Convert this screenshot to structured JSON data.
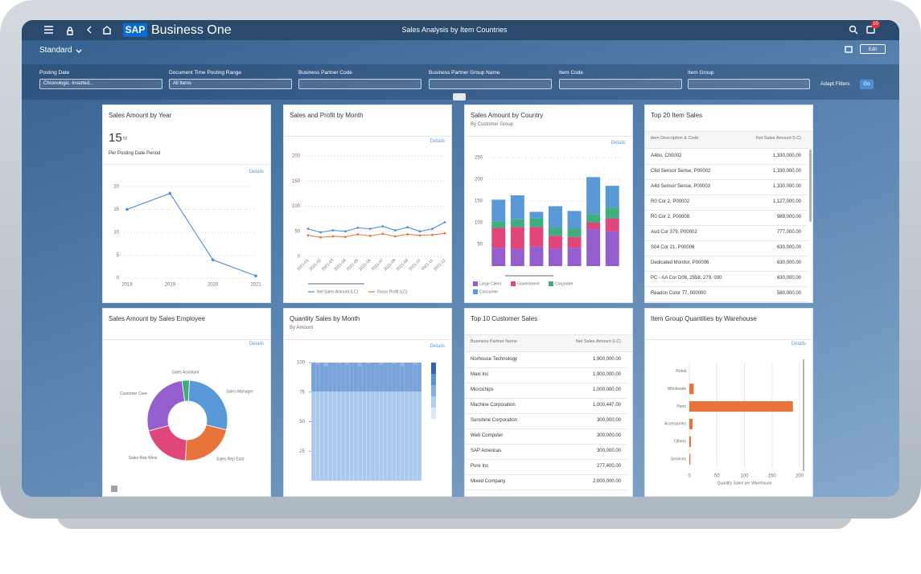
{
  "header": {
    "logo": "SAP",
    "app": "Business One",
    "title": "Sales Analysis by Item Countries",
    "notifications": "10"
  },
  "variant": "Standard",
  "edit": "Edit",
  "filters": [
    {
      "label": "Posting Date",
      "value": "Chronologic. Inserted..."
    },
    {
      "label": "Document Time Posting Range",
      "value": "All Items"
    },
    {
      "label": "Business Partner Code"
    },
    {
      "label": "Business Partner Group Name"
    },
    {
      "label": "Item Code"
    },
    {
      "label": "Item Group"
    }
  ],
  "adapt_filters": "Adapt Filters",
  "go": "Go",
  "chart_data": [
    {
      "type": "line",
      "title": "Sales Amount by Year",
      "kpi": "15",
      "kpi_unit": "M",
      "subtitle": "Per Posting Date Period",
      "link": "Details",
      "categories": [
        "2018",
        "2019",
        "2020",
        "2021"
      ],
      "values": [
        15,
        18.5,
        4,
        0.5
      ],
      "color": "#4a8fd4",
      "ylim": [
        0,
        20
      ],
      "yticks": [
        0,
        5,
        10,
        15,
        20
      ],
      "grid": true
    },
    {
      "type": "line",
      "title": "Sales and Profit by Month",
      "link": "Details",
      "categories": [
        "2021-01",
        "2021-02",
        "2021-03",
        "2021-04",
        "2021-05",
        "2021-06",
        "2021-07",
        "2021-08",
        "2021-09",
        "2021-10",
        "2021-11",
        "2021-12"
      ],
      "series": [
        {
          "name": "Net Sales Amount (LC)",
          "color": "#4a8fd4",
          "values": [
            55,
            48,
            52,
            50,
            57,
            55,
            60,
            52,
            58,
            50,
            55,
            68
          ]
        },
        {
          "name": "Gross Profit (LC)",
          "color": "#e8743b",
          "values": [
            42,
            38,
            40,
            39,
            44,
            41,
            45,
            40,
            44,
            42,
            43,
            46
          ]
        }
      ],
      "ylim": [
        0,
        200
      ],
      "yticks": [
        0,
        50,
        100,
        150,
        200
      ],
      "grid": true
    },
    {
      "type": "bar",
      "stacked": true,
      "title": "Sales Amount by Country",
      "subtitle": "By Customer Group",
      "link": "Details",
      "categories": [
        null,
        null,
        null,
        null,
        null,
        null,
        null
      ],
      "series": [
        {
          "name": "Large Client",
          "color": "#945ecf",
          "values": [
            42,
            40,
            45,
            40,
            42,
            85,
            80
          ]
        },
        {
          "name": "Government",
          "color": "#e0457b",
          "values": [
            46,
            50,
            45,
            30,
            25,
            15,
            30
          ]
        },
        {
          "name": "Corporate",
          "color": "#3fae7c",
          "values": [
            15,
            18,
            20,
            18,
            20,
            20,
            25
          ]
        },
        {
          "name": "Consumer",
          "color": "#5a99d8",
          "values": [
            50,
            55,
            15,
            50,
            40,
            85,
            50
          ]
        }
      ],
      "ylim": [
        0,
        250
      ],
      "yticks": [
        50,
        100,
        150,
        200,
        250
      ],
      "grid": true
    },
    {
      "type": "pie",
      "donut": true,
      "title": "Sales Amount by Sales Employee",
      "link": "Details",
      "categories": [
        "Sales Manager",
        "Sales Rep East",
        "Sales Rep West",
        "Customer Care",
        "Sales Assistant"
      ],
      "values": [
        28,
        22,
        20,
        27,
        3
      ],
      "colors": [
        "#5a99d8",
        "#e8743b",
        "#e0457b",
        "#945ecf",
        "#3fae7c"
      ]
    },
    {
      "type": "bar",
      "title": "Quantity Sales by Month",
      "subtitle": "By Amount",
      "link": "Details",
      "categories": [
        null,
        null,
        null,
        null,
        null,
        null,
        null,
        null,
        null,
        null,
        null,
        null,
        null,
        null,
        null,
        null,
        null,
        null,
        null,
        null,
        null,
        null,
        null,
        null,
        null,
        null
      ],
      "values": [
        100,
        98,
        100,
        97,
        100,
        100,
        99,
        100,
        98,
        100,
        100,
        97,
        100,
        99,
        100,
        100,
        98,
        100,
        100,
        99,
        100,
        97,
        100,
        100,
        98,
        100
      ],
      "color": "#a9c9ee",
      "ylim": [
        0,
        100
      ],
      "yticks": [
        25,
        50,
        75,
        100
      ]
    },
    {
      "type": "bar",
      "orientation": "horizontal",
      "title": "Item Group Quantities by Warehouse",
      "link": "Details",
      "categories": [
        "Retail",
        "Wholesale",
        "Parts",
        "Accessories",
        "Others",
        "Services"
      ],
      "values": [
        0,
        8,
        188,
        6,
        3,
        2
      ],
      "color": "#e8743b",
      "xlim": [
        0,
        200
      ],
      "xticks": [
        0,
        50,
        100,
        150,
        200
      ],
      "xlabel": "Quantity Sales per Warehouse",
      "grid": true
    }
  ],
  "tables": [
    {
      "title": "Top 20 Item Sales",
      "columns": [
        "Item Description & Code",
        "Net Sales Amount (LC)"
      ],
      "rows": [
        [
          "A4bo, C00002",
          "1,330,000.00"
        ],
        [
          "C6d Sensor Sense, P00002",
          "1,330,000.00"
        ],
        [
          "A4d Sensor Sense, P00003",
          "1,330,000.00"
        ],
        [
          "R0 Cor 2, P00002",
          "1,127,000.00"
        ],
        [
          "R0 Cor 2, P00008",
          "989,000.00"
        ],
        [
          "Aud Cor 379, P00002",
          "777,000.00"
        ],
        [
          "S04 Cor 21, P00006",
          "630,000.00"
        ],
        [
          "Dedicated Monitor, P00006",
          "630,000.00"
        ],
        [
          "PC - AA Cor D08, 2558, 279, 000",
          "630,000.00"
        ],
        [
          "Readon Color 77, 000000",
          "580,000.00"
        ]
      ]
    },
    {
      "title": "Top 10 Customer Sales",
      "columns": [
        "Business Partner Name",
        "Net Sales Amount (LC)"
      ],
      "rows": [
        [
          "Norhouse Technology",
          "1,900,000.00"
        ],
        [
          "Maxi Inc",
          "1,900,000.00"
        ],
        [
          "Microchips",
          "1,000,000.00"
        ],
        [
          "Machine Corporation",
          "1,000,447.00"
        ],
        [
          "Sunshine Corporation",
          "300,000.00"
        ],
        [
          "Web Computer",
          "300,000.00"
        ],
        [
          "SAP Americas",
          "300,000.00"
        ],
        [
          "Pure Inc",
          "277,400.00"
        ],
        [
          "Mixed Company",
          "2,000,000.00"
        ]
      ]
    }
  ]
}
